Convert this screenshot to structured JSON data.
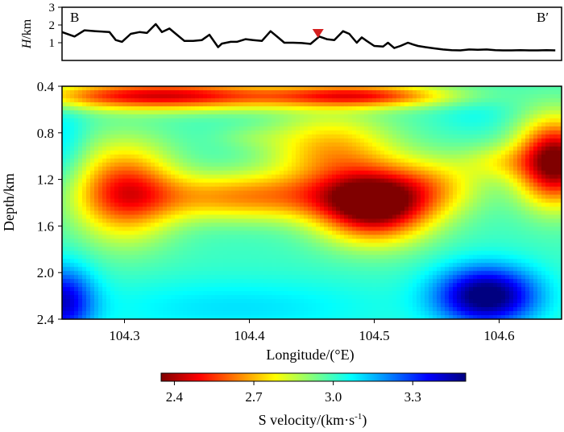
{
  "chart_data": [
    {
      "type": "line",
      "title": "",
      "ylabel_italic": "H",
      "ylabel_unit": "/km",
      "ylim": [
        0,
        3
      ],
      "yticks": [
        "1",
        "2",
        "3"
      ],
      "xlim": [
        104.25,
        104.65
      ],
      "left_label": "B",
      "right_label": "B′",
      "marker": {
        "name": "station",
        "x": 104.455,
        "symbol": "inverted-triangle",
        "color": "#d42020"
      },
      "x": [
        104.25,
        104.26,
        104.268,
        104.277,
        104.288,
        104.293,
        104.298,
        104.305,
        104.312,
        104.318,
        104.325,
        104.33,
        104.336,
        104.342,
        104.348,
        104.355,
        104.362,
        104.368,
        104.375,
        104.378,
        104.385,
        104.39,
        104.397,
        104.403,
        104.41,
        104.417,
        104.423,
        104.428,
        104.435,
        104.442,
        104.449,
        104.456,
        104.462,
        104.468,
        104.475,
        104.48,
        104.486,
        104.49,
        104.494,
        104.5,
        104.507,
        104.511,
        104.516,
        104.521,
        104.527,
        104.531,
        104.535,
        104.541,
        104.548,
        104.555,
        104.562,
        104.569,
        104.576,
        104.583,
        104.59,
        104.597,
        104.603,
        104.61,
        104.617,
        104.624,
        104.631,
        104.638,
        104.645
      ],
      "values": [
        1.6,
        1.35,
        1.7,
        1.65,
        1.6,
        1.15,
        1.05,
        1.5,
        1.6,
        1.55,
        2.05,
        1.6,
        1.8,
        1.45,
        1.1,
        1.1,
        1.15,
        1.45,
        0.75,
        0.95,
        1.05,
        1.05,
        1.2,
        1.15,
        1.1,
        1.65,
        1.3,
        1.0,
        1.0,
        0.98,
        0.93,
        1.35,
        1.2,
        1.15,
        1.65,
        1.5,
        1.0,
        1.3,
        1.1,
        0.82,
        0.78,
        1.0,
        0.7,
        0.82,
        1.0,
        0.9,
        0.82,
        0.75,
        0.68,
        0.62,
        0.58,
        0.57,
        0.62,
        0.6,
        0.62,
        0.58,
        0.57,
        0.57,
        0.58,
        0.57,
        0.57,
        0.58,
        0.57
      ]
    },
    {
      "type": "heatmap",
      "title": "",
      "xlabel": "Longitude/(°E)",
      "ylabel": "Depth/km",
      "xlim": [
        104.25,
        104.65
      ],
      "ylim": [
        0.4,
        2.4
      ],
      "xticks": [
        "104.3",
        "104.4",
        "104.5",
        "104.6"
      ],
      "yticks": [
        "0.4",
        "0.8",
        "1.2",
        "1.6",
        "2.0",
        "2.4"
      ],
      "value_range": [
        2.35,
        3.5
      ],
      "background_value": 3.0,
      "anomalies": [
        {
          "x": 104.33,
          "y": 0.48,
          "sx": 0.1,
          "sy": 0.12,
          "delta": -0.55
        },
        {
          "x": 104.49,
          "y": 0.48,
          "sx": 0.07,
          "sy": 0.1,
          "delta": -0.45
        },
        {
          "x": 104.5,
          "y": 1.42,
          "sx": 0.045,
          "sy": 0.3,
          "delta": -0.7
        },
        {
          "x": 104.465,
          "y": 0.95,
          "sx": 0.05,
          "sy": 0.32,
          "delta": -0.3
        },
        {
          "x": 104.645,
          "y": 1.05,
          "sx": 0.03,
          "sy": 0.35,
          "delta": -0.7
        },
        {
          "x": 104.3,
          "y": 1.3,
          "sx": 0.04,
          "sy": 0.4,
          "delta": -0.45
        },
        {
          "x": 104.4,
          "y": 1.35,
          "sx": 0.09,
          "sy": 0.2,
          "delta": -0.35
        },
        {
          "x": 104.4,
          "y": 0.84,
          "sx": 0.03,
          "sy": 0.1,
          "delta": -0.05
        },
        {
          "x": 104.58,
          "y": 0.65,
          "sx": 0.03,
          "sy": 0.15,
          "delta": 0.05
        },
        {
          "x": 104.59,
          "y": 2.2,
          "sx": 0.04,
          "sy": 0.25,
          "delta": 0.55
        },
        {
          "x": 104.25,
          "y": 2.25,
          "sx": 0.025,
          "sy": 0.3,
          "delta": 0.4
        },
        {
          "x": 104.25,
          "y": 0.9,
          "sx": 0.02,
          "sy": 0.4,
          "delta": 0.1
        },
        {
          "x": 104.39,
          "y": 2.3,
          "sx": 0.12,
          "sy": 0.25,
          "delta": 0.1
        },
        {
          "x": 104.55,
          "y": 1.25,
          "sx": 0.04,
          "sy": 0.25,
          "delta": -0.2
        },
        {
          "x": 104.6,
          "y": 1.05,
          "sx": 0.03,
          "sy": 0.15,
          "delta": -0.15
        }
      ],
      "colorbar": {
        "label": "S velocity/(km·s",
        "label_sup": "-1",
        "label_close": ")",
        "ticks": [
          "2.4",
          "2.7",
          "3.0",
          "3.3"
        ],
        "range": [
          2.35,
          3.5
        ],
        "stops": [
          "#800000",
          "#ff0000",
          "#ff8000",
          "#ffff00",
          "#80ff80",
          "#00ffff",
          "#0080ff",
          "#0000ff",
          "#000080"
        ]
      }
    }
  ]
}
